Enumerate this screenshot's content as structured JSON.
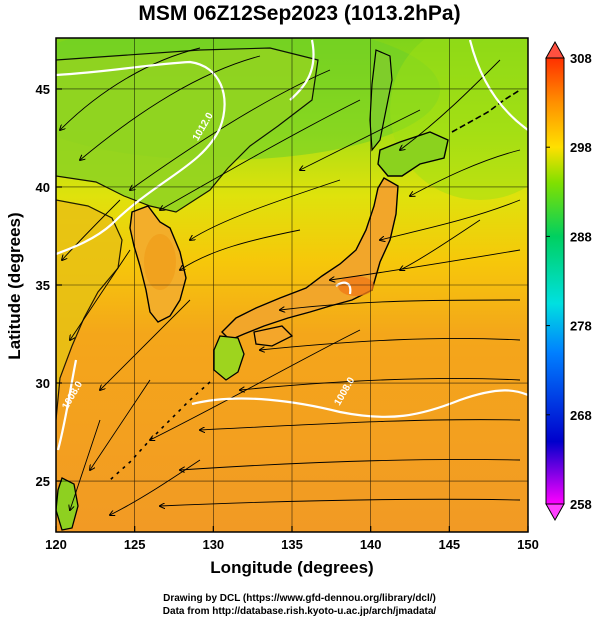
{
  "title": "MSM 06Z12Sep2023 (1013.2hPa)",
  "xlabel": "Longitude (degrees)",
  "ylabel": "Latitude (degrees)",
  "credits": {
    "line1": "Drawing by DCL (https://www.gfd-dennou.org/library/dcl/)",
    "line2": "Data from http://database.rish.kyoto-u.ac.jp/arch/jmadata/"
  },
  "chart_data": {
    "type": "heatmap",
    "xlim": [
      120,
      150
    ],
    "ylim": [
      22.4,
      47.6
    ],
    "xticks": [
      120,
      125,
      130,
      135,
      140,
      145,
      150
    ],
    "yticks": [
      25,
      30,
      35,
      40,
      45
    ],
    "grid": true,
    "colorbar": {
      "min": 258,
      "max": 308,
      "ticks": [
        258,
        268,
        278,
        288,
        298,
        308
      ],
      "stops": [
        "#ff00ff",
        "#0000cc",
        "#0080ff",
        "#00e0e0",
        "#00d060",
        "#80e000",
        "#ffe000",
        "#ff9000",
        "#ff3000"
      ],
      "extend": "both"
    },
    "contours": [
      {
        "label": "1012.0",
        "lon": 129.5,
        "lat": 43.0
      },
      {
        "label": "1008.0",
        "lon": 121.2,
        "lat": 29.3
      },
      {
        "label": "1008.0",
        "lon": 138.5,
        "lat": 29.5
      }
    ]
  }
}
